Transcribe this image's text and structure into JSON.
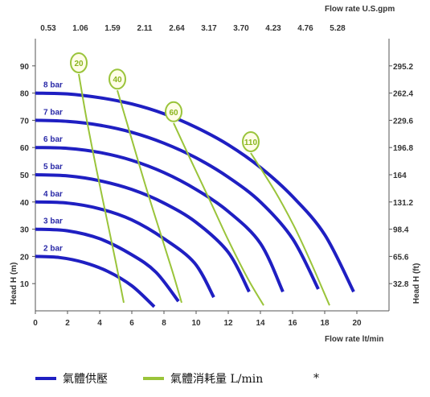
{
  "colors": {
    "pressure_curve": "#1f1fc2",
    "air_curve": "#9ac43a",
    "axis": "#555555",
    "bubble_fill": "#fffde8"
  },
  "legend": {
    "pressure_label": "氣體供壓",
    "air_label": "氣體消耗量 L/min",
    "note": "*"
  },
  "chart_data": {
    "type": "line",
    "x_axis": {
      "label": "Flow rate  lt/min",
      "range": [
        0,
        22
      ],
      "ticks": [
        0,
        2,
        4,
        6,
        8,
        10,
        12,
        14,
        16,
        18,
        20
      ]
    },
    "x_axis_top": {
      "label": "Flow rate U.S.gpm",
      "ticks": [
        "0.53",
        "1.06",
        "1.59",
        "2.11",
        "2.64",
        "3.17",
        "3.70",
        "4.23",
        "4.76",
        "5.28"
      ]
    },
    "y_axis": {
      "label": "Head H (m)",
      "range": [
        0,
        100
      ],
      "ticks": [
        10,
        20,
        30,
        40,
        50,
        60,
        70,
        80,
        90
      ]
    },
    "y_axis_right": {
      "label": "Head H (ft)",
      "ticks": [
        "32.8",
        "65.6",
        "98.4",
        "131.2",
        "164",
        "196.8",
        "229.6",
        "262.4",
        "295.2"
      ]
    },
    "pressure_series": [
      {
        "name": "2 bar",
        "x": [
          0,
          1.5,
          3,
          4.5,
          6,
          7.4
        ],
        "y": [
          20,
          19.6,
          17.8,
          14.5,
          9.2,
          1.5
        ]
      },
      {
        "name": "3 bar",
        "x": [
          0,
          2,
          4,
          6,
          7.5,
          8.9
        ],
        "y": [
          30,
          29.4,
          26.5,
          20.6,
          14.2,
          3.5
        ]
      },
      {
        "name": "4 bar",
        "x": [
          0,
          2,
          4,
          6,
          8,
          9.9,
          11.1
        ],
        "y": [
          40,
          39.6,
          37.5,
          33.4,
          26.5,
          17.6,
          5
        ]
      },
      {
        "name": "5 bar",
        "x": [
          0,
          2,
          4,
          6,
          8,
          10,
          12,
          13.3
        ],
        "y": [
          50,
          49.6,
          47.8,
          44.6,
          39.6,
          32.5,
          21.5,
          7
        ]
      },
      {
        "name": "6 bar",
        "x": [
          0,
          2,
          4,
          6,
          8,
          10,
          12,
          14,
          15.4
        ],
        "y": [
          60,
          59.7,
          58.2,
          55.3,
          50.8,
          44.6,
          36.5,
          24.8,
          7
        ]
      },
      {
        "name": "7 bar",
        "x": [
          0,
          2,
          4,
          6,
          8,
          10,
          12,
          14,
          16,
          17.6
        ],
        "y": [
          70,
          69.6,
          68.2,
          65.6,
          61.6,
          56.2,
          49.1,
          40,
          26.5,
          8
        ]
      },
      {
        "name": "8 bar",
        "x": [
          0,
          2,
          4,
          6,
          8,
          10,
          12,
          14,
          16,
          18,
          19.8
        ],
        "y": [
          80,
          79.7,
          78.3,
          76,
          72.4,
          67.4,
          61,
          52.7,
          42,
          28,
          7
        ]
      }
    ],
    "air_series": [
      {
        "name": "20",
        "x": [
          2.7,
          3.2,
          3.8,
          4.4,
          5.0,
          5.5
        ],
        "y": [
          87,
          70,
          52,
          35,
          18,
          3
        ]
      },
      {
        "name": "40",
        "x": [
          5.1,
          5.9,
          6.8,
          7.7,
          8.5,
          9.1
        ],
        "y": [
          81,
          65,
          47,
          30,
          15,
          3
        ]
      },
      {
        "name": "60",
        "x": [
          8.6,
          9.7,
          10.9,
          12.0,
          13.2,
          14.2
        ],
        "y": [
          69,
          55,
          40,
          26,
          12,
          2
        ]
      },
      {
        "name": "110",
        "x": [
          13.4,
          14.9,
          16.1,
          17.2,
          18.3
        ],
        "y": [
          58,
          44,
          31,
          17,
          2
        ]
      }
    ]
  }
}
